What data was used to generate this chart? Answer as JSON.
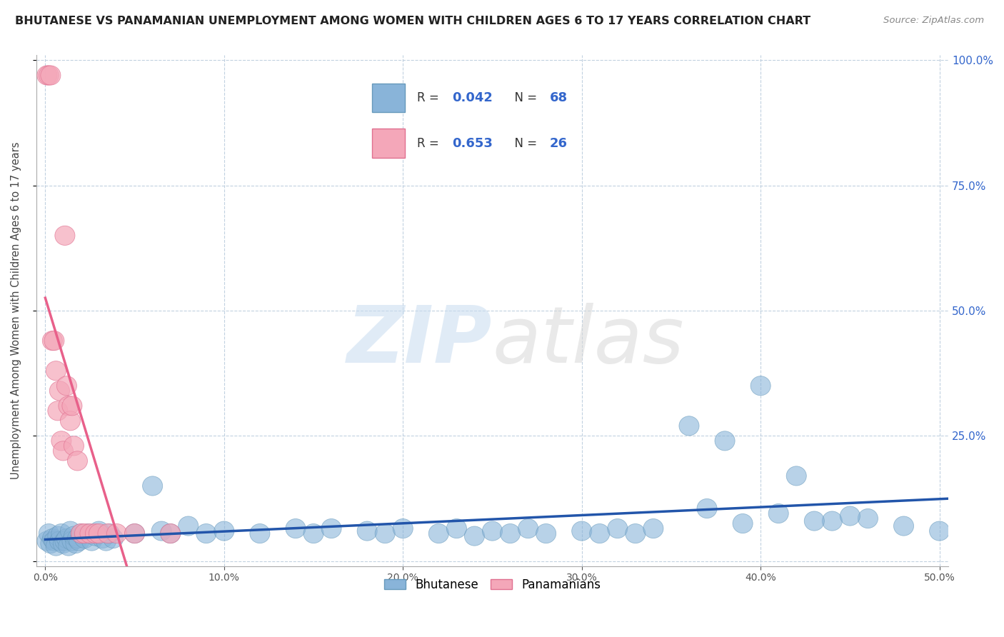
{
  "title": "BHUTANESE VS PANAMANIAN UNEMPLOYMENT AMONG WOMEN WITH CHILDREN AGES 6 TO 17 YEARS CORRELATION CHART",
  "source": "Source: ZipAtlas.com",
  "ylabel": "Unemployment Among Women with Children Ages 6 to 17 years",
  "xlim": [
    -0.005,
    0.505
  ],
  "ylim": [
    -0.01,
    1.01
  ],
  "xticks": [
    0.0,
    0.1,
    0.2,
    0.3,
    0.4,
    0.5
  ],
  "yticks": [
    0.0,
    0.25,
    0.5,
    0.75,
    1.0
  ],
  "blue_color": "#89B4D9",
  "pink_color": "#F4A7B9",
  "blue_edge": "#6699BB",
  "pink_edge": "#E07090",
  "trend_blue": "#2255AA",
  "trend_pink": "#E8608A",
  "watermark": "ZIPatlas",
  "legend_r1": "0.042",
  "legend_n1": "68",
  "legend_r2": "0.653",
  "legend_n2": "26",
  "blue_x": [
    0.001,
    0.002,
    0.003,
    0.004,
    0.005,
    0.006,
    0.007,
    0.008,
    0.009,
    0.01,
    0.011,
    0.012,
    0.013,
    0.014,
    0.015,
    0.016,
    0.017,
    0.018,
    0.019,
    0.02,
    0.022,
    0.024,
    0.026,
    0.028,
    0.03,
    0.032,
    0.034,
    0.036,
    0.038,
    0.05,
    0.06,
    0.065,
    0.07,
    0.08,
    0.09,
    0.1,
    0.12,
    0.14,
    0.15,
    0.16,
    0.18,
    0.19,
    0.2,
    0.22,
    0.23,
    0.24,
    0.25,
    0.26,
    0.27,
    0.28,
    0.3,
    0.31,
    0.32,
    0.33,
    0.34,
    0.36,
    0.38,
    0.4,
    0.42,
    0.44,
    0.46,
    0.48,
    0.5,
    0.37,
    0.39,
    0.41,
    0.43,
    0.45
  ],
  "blue_y": [
    0.04,
    0.055,
    0.035,
    0.045,
    0.04,
    0.03,
    0.05,
    0.04,
    0.055,
    0.035,
    0.04,
    0.045,
    0.03,
    0.06,
    0.04,
    0.05,
    0.035,
    0.045,
    0.04,
    0.055,
    0.045,
    0.055,
    0.04,
    0.05,
    0.06,
    0.045,
    0.04,
    0.055,
    0.045,
    0.055,
    0.15,
    0.06,
    0.055,
    0.07,
    0.055,
    0.06,
    0.055,
    0.065,
    0.055,
    0.065,
    0.06,
    0.055,
    0.065,
    0.055,
    0.065,
    0.05,
    0.06,
    0.055,
    0.065,
    0.055,
    0.06,
    0.055,
    0.065,
    0.055,
    0.065,
    0.27,
    0.24,
    0.35,
    0.17,
    0.08,
    0.085,
    0.07,
    0.06,
    0.105,
    0.075,
    0.095,
    0.08,
    0.09
  ],
  "pink_x": [
    0.001,
    0.002,
    0.003,
    0.004,
    0.005,
    0.006,
    0.007,
    0.008,
    0.009,
    0.01,
    0.011,
    0.012,
    0.013,
    0.014,
    0.015,
    0.016,
    0.018,
    0.02,
    0.022,
    0.025,
    0.028,
    0.03,
    0.035,
    0.04,
    0.05,
    0.07
  ],
  "pink_y": [
    0.97,
    0.97,
    0.97,
    0.44,
    0.44,
    0.38,
    0.3,
    0.34,
    0.24,
    0.22,
    0.65,
    0.35,
    0.31,
    0.28,
    0.31,
    0.23,
    0.2,
    0.055,
    0.055,
    0.055,
    0.055,
    0.055,
    0.055,
    0.055,
    0.055,
    0.055
  ],
  "bg_color": "#FFFFFF",
  "grid_color": "#BBCCDD",
  "title_color": "#222222",
  "axis_color": "#444444",
  "right_tick_color": "#3366CC"
}
